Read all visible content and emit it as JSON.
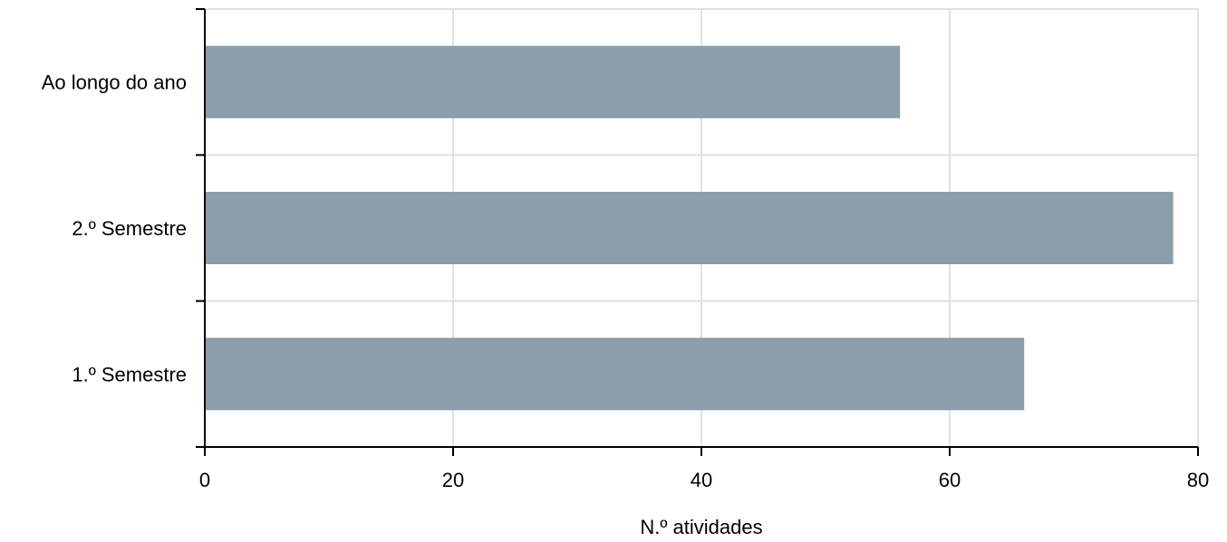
{
  "chart_data": {
    "type": "bar",
    "orientation": "horizontal",
    "categories": [
      "Ao longo do ano",
      "2.º Semestre",
      "1.º Semestre"
    ],
    "values": [
      56,
      78,
      66
    ],
    "xlabel": "N.º atividades",
    "ylabel": "",
    "xlim": [
      0,
      80
    ],
    "xticks": [
      "0",
      "20",
      "40",
      "60",
      "80"
    ],
    "grid": true,
    "legend": "none",
    "colors": {
      "bar": "#8c9ea9",
      "grid": "#d9d9d9",
      "axis": "#000000"
    }
  }
}
